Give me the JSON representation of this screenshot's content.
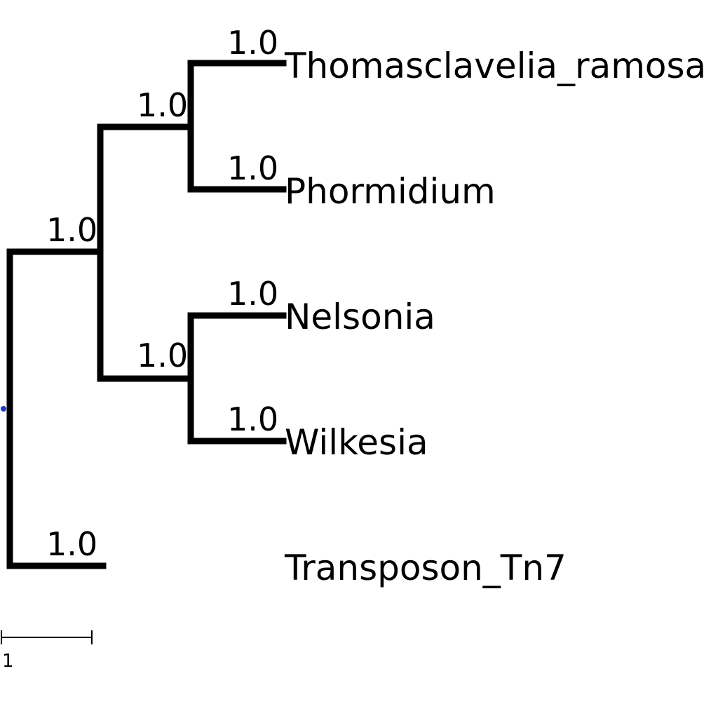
{
  "tree": {
    "root_marker_color": "#1f3fbf",
    "branch_color": "#000000",
    "scale_bar": {
      "label": "1"
    },
    "internal_nodes": [
      {
        "id": "n_ingroup",
        "support": "1.0"
      },
      {
        "id": "n_top",
        "support": "1.0"
      },
      {
        "id": "n_bottom",
        "support": "1.0"
      }
    ],
    "leaves": [
      {
        "id": "thomasclavelia",
        "name": "Thomasclavelia_ramosa",
        "support": "1.0"
      },
      {
        "id": "phormidium",
        "name": "Phormidium",
        "support": "1.0"
      },
      {
        "id": "nelsonia",
        "name": "Nelsonia",
        "support": "1.0"
      },
      {
        "id": "wilkesia",
        "name": "Wilkesia",
        "support": "1.0"
      },
      {
        "id": "transposon",
        "name": "Transposon_Tn7",
        "support": "1.0"
      }
    ]
  }
}
